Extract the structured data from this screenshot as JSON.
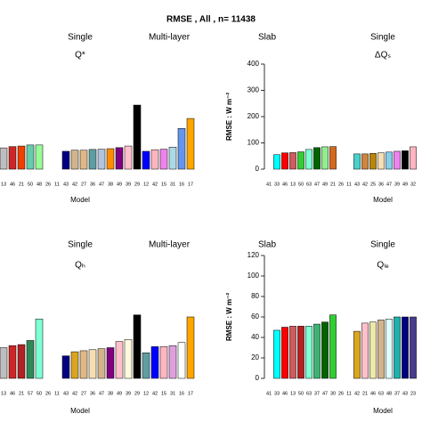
{
  "title": "RMSE ,  All , n= 11438",
  "chart_data": [
    {
      "type": "bar",
      "subtitle": "Q*",
      "groups": [
        "Single",
        "Multi-layer"
      ],
      "x_label": "Model",
      "ylim": [
        0,
        400
      ],
      "categories": [
        "13",
        "46",
        "21",
        "50",
        "48",
        "26",
        "11",
        "43",
        "42",
        "27",
        "36",
        "47",
        "38",
        "49",
        "39",
        "29",
        "12",
        "42",
        "15",
        "31",
        "16",
        "17"
      ],
      "values": [
        81,
        86,
        88,
        92,
        92,
        null,
        null,
        68,
        72,
        72,
        75,
        76,
        78,
        82,
        88,
        244,
        68,
        74,
        76,
        84,
        155,
        193
      ],
      "colors": [
        "#bebebe",
        "#cd2626",
        "#ee4000",
        "#66cdaa",
        "#98fb98",
        null,
        null,
        "#000080",
        "#d2b48c",
        "#deb887",
        "#5f9ea0",
        "#b0c4de",
        "#ff8c00",
        "#800080",
        "#ffc0cb",
        "#000000",
        "#0000ff",
        "#ffb6c1",
        "#ee82ee",
        "#add8e6",
        "#6495ed",
        "#ffa500"
      ]
    },
    {
      "type": "bar",
      "subtitle": "ΔQₛ",
      "groups": [
        "Slab",
        "Single"
      ],
      "x_label": "Model",
      "y_label": "RMSE : W m⁻²",
      "ylim": [
        0,
        400
      ],
      "yticks": [
        0,
        100,
        200,
        300,
        400
      ],
      "categories": [
        "41",
        "33",
        "46",
        "13",
        "50",
        "63",
        "47",
        "49",
        "21",
        "26",
        "11",
        "43",
        "42",
        "25",
        "36",
        "47",
        "39",
        "49",
        "32"
      ],
      "values": [
        null,
        55,
        62,
        63,
        66,
        75,
        82,
        85,
        86,
        null,
        null,
        58,
        58,
        60,
        62,
        65,
        68,
        70,
        85
      ],
      "colors": [
        null,
        "#00ffff",
        "#ff0000",
        "#cd5c5c",
        "#32cd32",
        "#7fffd4",
        "#006400",
        "#90ee90",
        "#d2691e",
        null,
        null,
        "#48d1cc",
        "#cd853f",
        "#b8860b",
        "#f5deb3",
        "#87ceeb",
        "#ee82ee",
        "#000000",
        "#ffb6c1"
      ]
    },
    {
      "type": "bar",
      "subtitle": "Qₕ",
      "groups": [
        "Single",
        "Multi-layer"
      ],
      "x_label": "Model",
      "ylim": [
        0,
        120
      ],
      "categories": [
        "13",
        "46",
        "21",
        "57",
        "50",
        "26",
        "11",
        "43",
        "42",
        "27",
        "36",
        "47",
        "38",
        "49",
        "39",
        "29",
        "12",
        "42",
        "15",
        "31",
        "16",
        "17"
      ],
      "values": [
        30,
        32,
        33,
        37,
        58,
        null,
        null,
        22,
        26,
        27,
        28,
        29,
        30,
        36,
        38,
        62,
        25,
        31,
        31,
        32,
        35,
        60
      ],
      "colors": [
        "#bebebe",
        "#cd2626",
        "#b22222",
        "#2e8b57",
        "#7fffd4",
        null,
        null,
        "#000080",
        "#daa520",
        "#deb887",
        "#f5deb3",
        "#d2b48c",
        "#800080",
        "#ffc0cb",
        "#fff8dc",
        "#000000",
        "#5f9ea0",
        "#0000ff",
        "#ffb6c1",
        "#dda0dd",
        "#ffffff",
        "#ffa500"
      ]
    },
    {
      "type": "bar",
      "subtitle": "Qₗₑ",
      "groups": [
        "Slab",
        "Single"
      ],
      "x_label": "Model",
      "y_label": "RMSE : W m⁻²",
      "ylim": [
        0,
        120
      ],
      "yticks": [
        0,
        20,
        40,
        60,
        80,
        100,
        120
      ],
      "categories": [
        "41",
        "33",
        "46",
        "13",
        "50",
        "63",
        "37",
        "47",
        "30",
        "26",
        "11",
        "42",
        "21",
        "46",
        "63",
        "48",
        "37",
        "43",
        "23"
      ],
      "values": [
        null,
        47,
        50,
        51,
        51,
        51,
        53,
        55,
        62,
        null,
        null,
        46,
        54,
        55,
        57,
        58,
        60,
        60,
        60
      ],
      "colors": [
        null,
        "#00ffff",
        "#ff0000",
        "#cd5c5c",
        "#b22222",
        "#7fffd4",
        "#3cb371",
        "#006400",
        "#32cd32",
        null,
        null,
        "#daa520",
        "#ffc0cb",
        "#eee8aa",
        "#d2b48c",
        "#e0ffff",
        "#20b2aa",
        "#000080",
        "#483d8b"
      ]
    }
  ]
}
